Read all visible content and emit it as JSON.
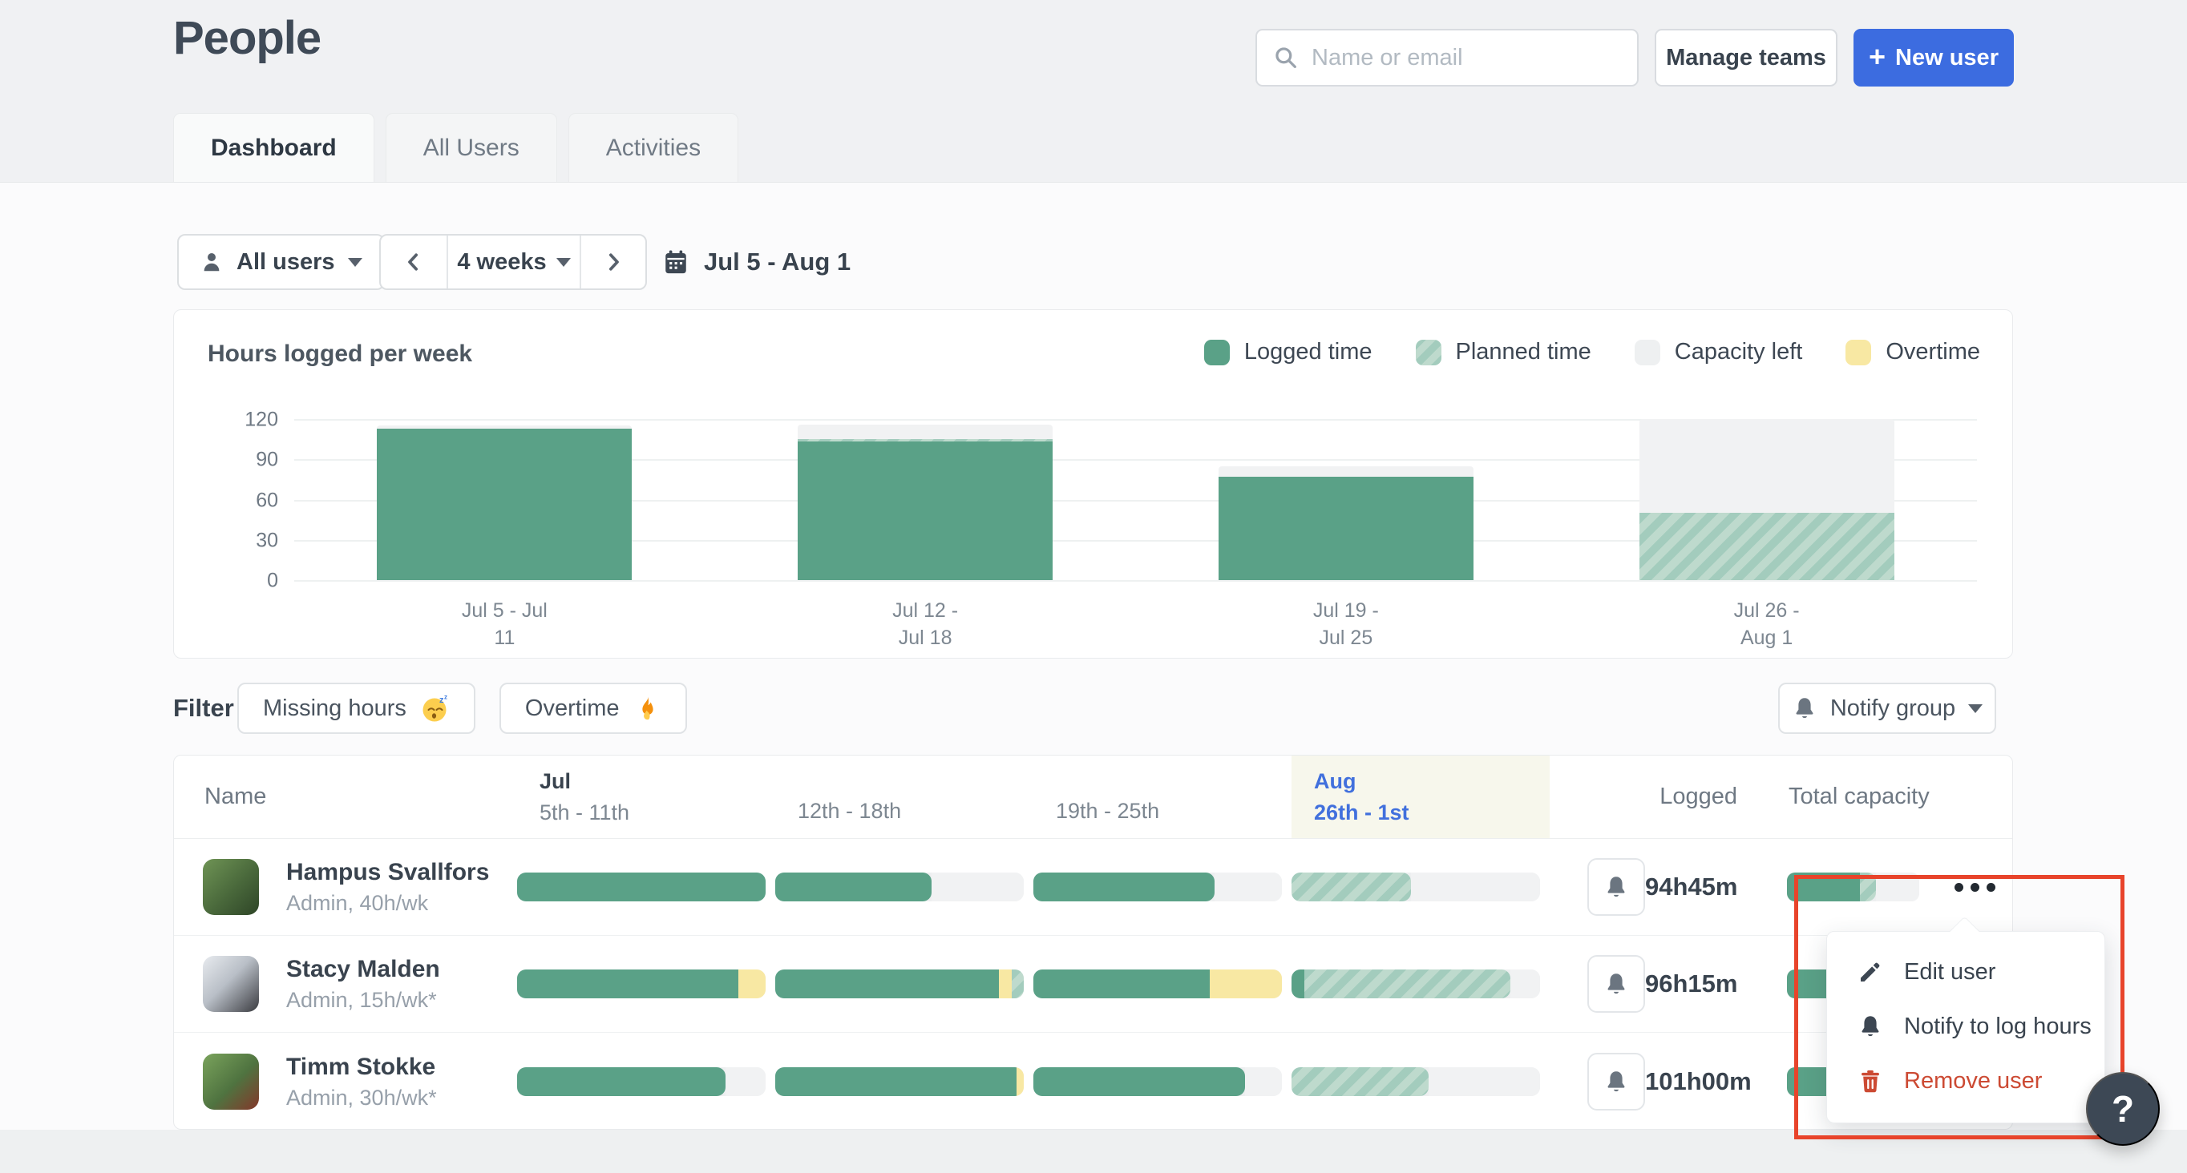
{
  "header": {
    "title": "People",
    "search_placeholder": "Name or email",
    "manage_teams_label": "Manage teams",
    "new_user_label": "New user",
    "new_user_plus": "+"
  },
  "tabs": [
    {
      "label": "Dashboard",
      "active": true
    },
    {
      "label": "All Users",
      "active": false
    },
    {
      "label": "Activities",
      "active": false
    }
  ],
  "toolbar": {
    "users_filter_label": "All users",
    "range_label": "4 weeks",
    "date_range_label": "Jul 5 - Aug 1"
  },
  "chart": {
    "title": "Hours logged per week",
    "legend": [
      {
        "label": "Logged time",
        "swatch": "logged"
      },
      {
        "label": "Planned time",
        "swatch": "planned"
      },
      {
        "label": "Capacity left",
        "swatch": "capacity"
      },
      {
        "label": "Overtime",
        "swatch": "overtime"
      }
    ]
  },
  "chart_data": {
    "type": "stacked-bar",
    "title": "Hours logged per week",
    "ylabel": "",
    "xlabel": "",
    "ylim": [
      0,
      120
    ],
    "yticks": [
      0,
      30,
      60,
      90,
      120
    ],
    "grid": true,
    "legend_position": "top-right",
    "categories": [
      "Jul 5 - Jul 11",
      "Jul 12 - Jul 18",
      "Jul 19 - Jul 25",
      "Jul 26 - Aug 1"
    ],
    "x_tick_lines": [
      [
        "Jul 5 - Jul",
        "11"
      ],
      [
        "Jul 12 -",
        "Jul 18"
      ],
      [
        "Jul 19 -",
        "Jul 25"
      ],
      [
        "Jul 26 -",
        "Aug 1"
      ]
    ],
    "series": [
      {
        "name": "Logged time",
        "type": "logged",
        "values": [
          113,
          103,
          77,
          0
        ]
      },
      {
        "name": "Planned time",
        "type": "planned",
        "values": [
          0,
          2,
          0,
          50
        ]
      },
      {
        "name": "Capacity left",
        "type": "capacity",
        "values": [
          2,
          11,
          8,
          70
        ]
      },
      {
        "name": "Overtime",
        "type": "overtime",
        "values": [
          0,
          0,
          0,
          0
        ]
      }
    ]
  },
  "filter": {
    "label": "Filter",
    "chips": [
      {
        "label": "Missing hours",
        "icon": "sleeping-emoji"
      },
      {
        "label": "Overtime",
        "icon": "fire-emoji"
      }
    ],
    "notify_group_label": "Notify group"
  },
  "table": {
    "headers": {
      "name": "Name",
      "weeks": [
        {
          "month": "Jul",
          "days": "5th - 11th",
          "highlight": false
        },
        {
          "month": "",
          "days": "12th - 18th",
          "highlight": false
        },
        {
          "month": "",
          "days": "19th - 25th",
          "highlight": false
        },
        {
          "month": "Aug",
          "days": "26th - 1st",
          "highlight": true
        }
      ],
      "logged": "Logged",
      "total_capacity": "Total capacity"
    },
    "rows": [
      {
        "name": "Hampus Svallfors",
        "meta": "Admin, 40h/wk",
        "logged": "94h45m",
        "week_bars": [
          [
            {
              "type": "logged",
              "pct": 100
            }
          ],
          [
            {
              "type": "logged",
              "pct": 63
            },
            {
              "type": "capacity",
              "pct": 37
            }
          ],
          [
            {
              "type": "logged",
              "pct": 73
            },
            {
              "type": "capacity",
              "pct": 27
            }
          ],
          [
            {
              "type": "planned",
              "pct": 48
            },
            {
              "type": "capacity",
              "pct": 52
            }
          ]
        ],
        "capacity_bar": [
          {
            "type": "logged",
            "pct": 55
          },
          {
            "type": "planned",
            "pct": 12
          },
          {
            "type": "capacity",
            "pct": 33
          }
        ]
      },
      {
        "name": "Stacy Malden",
        "meta": "Admin, 15h/wk*",
        "logged": "96h15m",
        "week_bars": [
          [
            {
              "type": "logged",
              "pct": 89
            },
            {
              "type": "overtime",
              "pct": 11
            }
          ],
          [
            {
              "type": "logged",
              "pct": 90
            },
            {
              "type": "overtime",
              "pct": 5
            },
            {
              "type": "planned",
              "pct": 5
            }
          ],
          [
            {
              "type": "logged",
              "pct": 71
            },
            {
              "type": "overtime",
              "pct": 29
            }
          ],
          [
            {
              "type": "logged",
              "pct": 5
            },
            {
              "type": "planned",
              "pct": 83
            },
            {
              "type": "capacity",
              "pct": 12
            }
          ]
        ],
        "capacity_bar": [
          {
            "type": "logged",
            "pct": 58
          },
          {
            "type": "capacity",
            "pct": 42
          }
        ]
      },
      {
        "name": "Timm Stokke",
        "meta": "Admin, 30h/wk*",
        "logged": "101h00m",
        "week_bars": [
          [
            {
              "type": "logged",
              "pct": 84
            },
            {
              "type": "capacity",
              "pct": 16
            }
          ],
          [
            {
              "type": "logged",
              "pct": 97
            },
            {
              "type": "overtime",
              "pct": 3
            }
          ],
          [
            {
              "type": "logged",
              "pct": 85
            },
            {
              "type": "capacity",
              "pct": 15
            }
          ],
          [
            {
              "type": "planned",
              "pct": 55
            },
            {
              "type": "capacity",
              "pct": 45
            }
          ]
        ],
        "capacity_bar": [
          {
            "type": "logged",
            "pct": 58
          },
          {
            "type": "capacity",
            "pct": 42
          }
        ]
      }
    ]
  },
  "menu": {
    "items": [
      {
        "label": "Edit user",
        "icon": "pencil",
        "danger": false
      },
      {
        "label": "Notify to log hours",
        "icon": "bell-dark",
        "danger": false
      },
      {
        "label": "Remove user",
        "icon": "trash",
        "danger": true
      }
    ]
  },
  "help": {
    "label": "?"
  },
  "colors": {
    "accent_blue": "#3c6ce0",
    "logged_green": "#5aa187",
    "planned_green": "#aed2c5",
    "capacity_gray": "#edeff0",
    "overtime_yellow": "#f8e8a3",
    "danger_red": "#cc4a33",
    "annotation_red": "#e8442b",
    "highlight_cream": "#f7f7ec",
    "header_blue": "#4170dd"
  }
}
